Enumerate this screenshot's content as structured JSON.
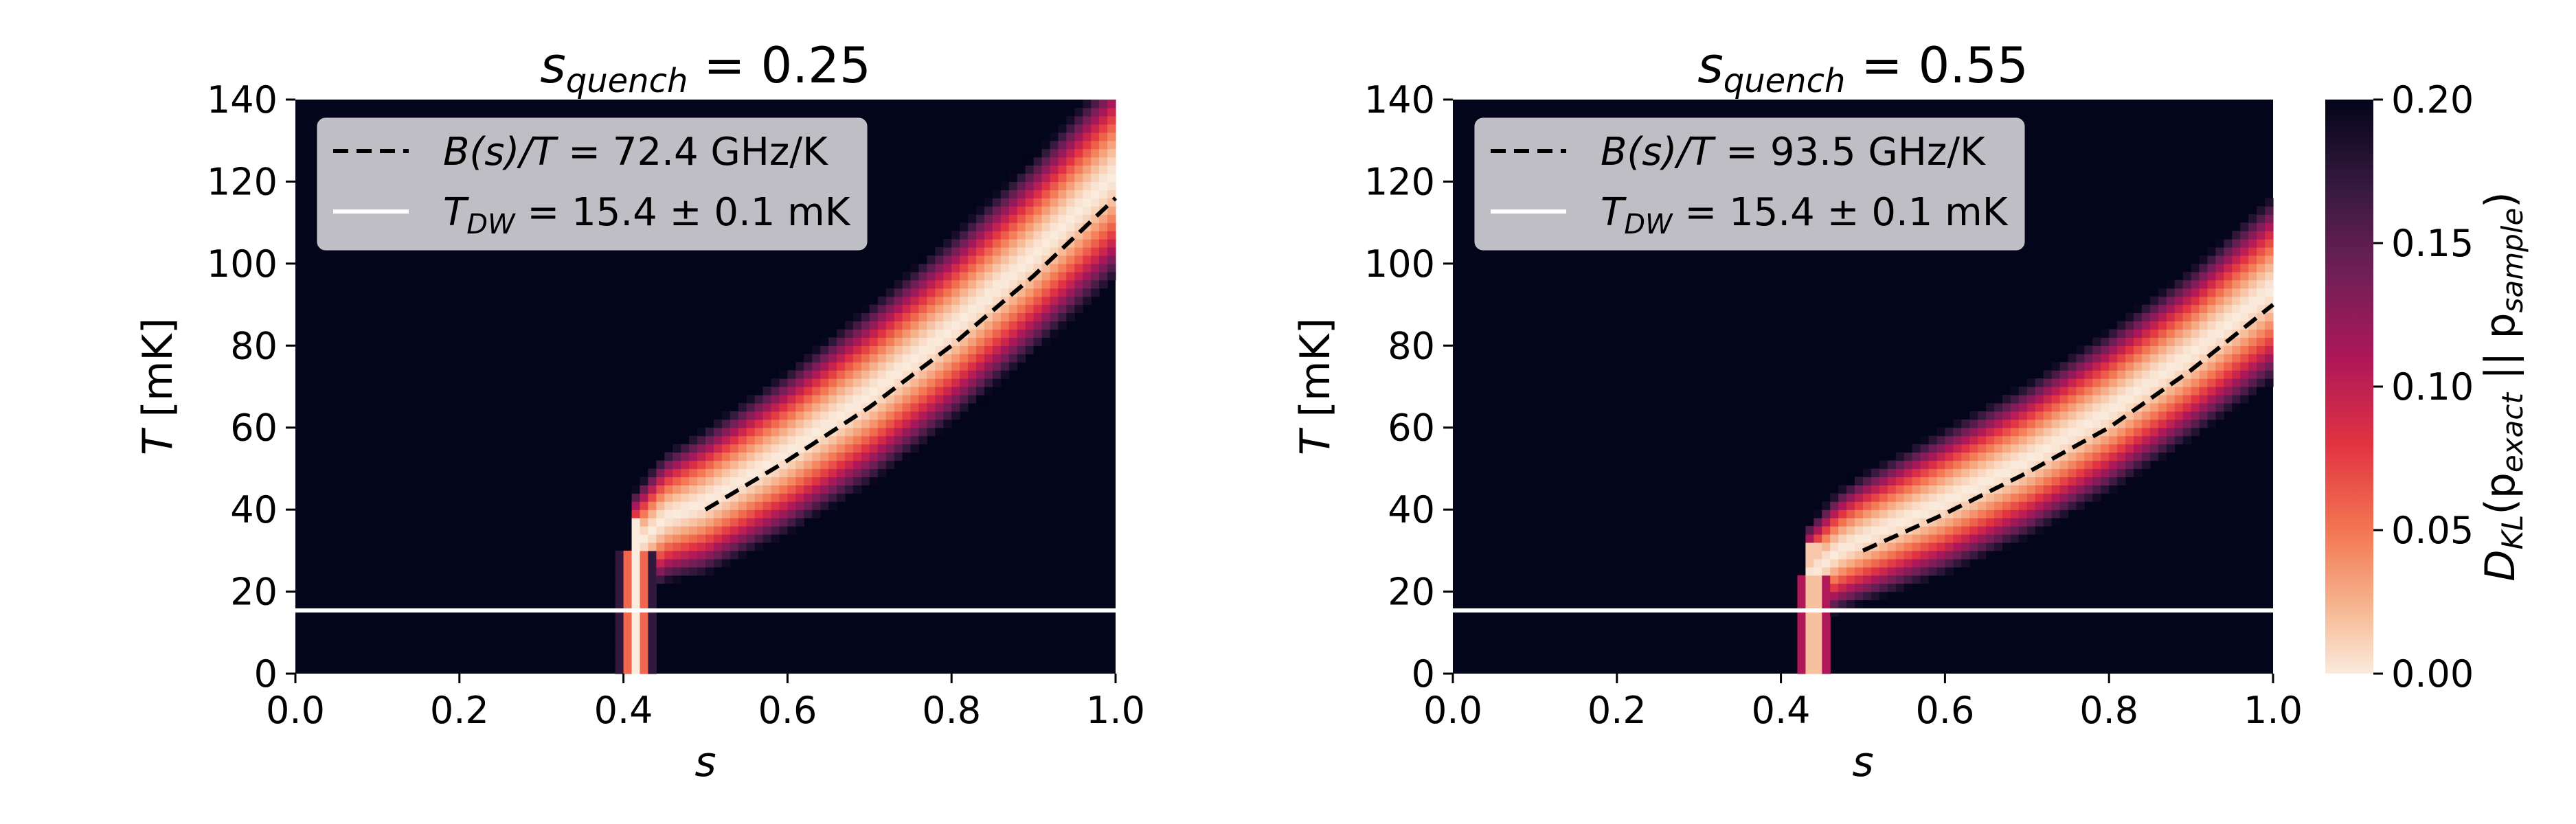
{
  "colors": {
    "background": "#ffffff",
    "heat_low": "#faebdd",
    "heat_high": "#03051a",
    "legend_bg": "#c8c8cd",
    "hline": "#ffffff",
    "dashed": "#000000"
  },
  "colorbar": {
    "label_text": "DKL(pexact || psample)",
    "label_main": "D",
    "label_sub1": "KL",
    "label_open": "(p",
    "label_sub2": "exact",
    "label_mid": " || p",
    "label_sub3": "sample",
    "label_close": ")",
    "range": [
      0.0,
      0.2
    ],
    "ticks": [
      "0.00",
      "0.05",
      "0.10",
      "0.15",
      "0.20"
    ],
    "tick_values": [
      0.0,
      0.05,
      0.1,
      0.15,
      0.2
    ]
  },
  "chart_data": [
    {
      "type": "heatmap",
      "title_text": "squench = 0.25",
      "title_main": "s",
      "title_sub": "quench",
      "title_value": " = 0.25",
      "xlabel": "s",
      "ylabel_italic": "T",
      "ylabel_rest": " [mK]",
      "xlim": [
        0.0,
        1.0
      ],
      "ylim": [
        0,
        140
      ],
      "xticks": [
        "0.0",
        "0.2",
        "0.4",
        "0.6",
        "0.8",
        "1.0"
      ],
      "xtick_values": [
        0.0,
        0.2,
        0.4,
        0.6,
        0.8,
        1.0
      ],
      "yticks": [
        "0",
        "20",
        "40",
        "60",
        "80",
        "100",
        "120",
        "140"
      ],
      "ytick_values": [
        0,
        20,
        40,
        60,
        80,
        100,
        120,
        140
      ],
      "legend": {
        "placement": "top-left",
        "entries": [
          {
            "style": "dashed",
            "text": "B(s)/T = 72.4 GHz/K",
            "italic": "B(s)/T",
            "value": " = 72.4 GHz/K"
          },
          {
            "style": "solid-white",
            "text": "TDW = 15.4 ± 0.1 mK",
            "italic": "T",
            "sub": "DW",
            "value": " = 15.4 ± 0.1 mK"
          }
        ]
      },
      "hline_T": 15.4,
      "dashed_line": {
        "s": [
          0.5,
          0.6,
          0.7,
          0.8,
          0.9,
          1.0
        ],
        "T": [
          40,
          52,
          65,
          80,
          97,
          116
        ]
      },
      "ridge": {
        "s_start": 0.41,
        "vertical_top_T": 30,
        "s": [
          0.41,
          0.45,
          0.5,
          0.6,
          0.7,
          0.8,
          0.9,
          1.0
        ],
        "T": [
          30,
          38,
          42,
          54,
          68,
          84,
          102,
          122
        ],
        "width": [
          4,
          6,
          8,
          10,
          12,
          13,
          14,
          16
        ],
        "halo": 10
      }
    },
    {
      "type": "heatmap",
      "title_text": "squench = 0.55",
      "title_main": "s",
      "title_sub": "quench",
      "title_value": " = 0.55",
      "xlabel": "s",
      "ylabel_italic": "T",
      "ylabel_rest": " [mK]",
      "xlim": [
        0.0,
        1.0
      ],
      "ylim": [
        0,
        140
      ],
      "xticks": [
        "0.0",
        "0.2",
        "0.4",
        "0.6",
        "0.8",
        "1.0"
      ],
      "xtick_values": [
        0.0,
        0.2,
        0.4,
        0.6,
        0.8,
        1.0
      ],
      "yticks": [
        "0",
        "20",
        "40",
        "60",
        "80",
        "100",
        "120",
        "140"
      ],
      "ytick_values": [
        0,
        20,
        40,
        60,
        80,
        100,
        120,
        140
      ],
      "legend": {
        "placement": "top-left",
        "entries": [
          {
            "style": "dashed",
            "text": "B(s)/T = 93.5 GHz/K",
            "italic": "B(s)/T",
            "value": " = 93.5 GHz/K"
          },
          {
            "style": "solid-white",
            "text": "TDW = 15.4 ± 0.1 mK",
            "italic": "T",
            "sub": "DW",
            "value": " = 15.4 ± 0.1 mK"
          }
        ]
      },
      "hline_T": 15.4,
      "dashed_line": {
        "s": [
          0.5,
          0.6,
          0.7,
          0.8,
          0.9,
          1.0
        ],
        "T": [
          30,
          39,
          49,
          60,
          74,
          90
        ]
      },
      "ridge": {
        "s_start": 0.435,
        "vertical_top_T": 24,
        "s": [
          0.435,
          0.47,
          0.5,
          0.6,
          0.7,
          0.8,
          0.9,
          1.0
        ],
        "T": [
          24,
          30,
          33,
          42,
          52,
          64,
          78,
          94
        ],
        "width": [
          4,
          6,
          7,
          9,
          10,
          11,
          12,
          14
        ],
        "halo": 9
      }
    }
  ]
}
